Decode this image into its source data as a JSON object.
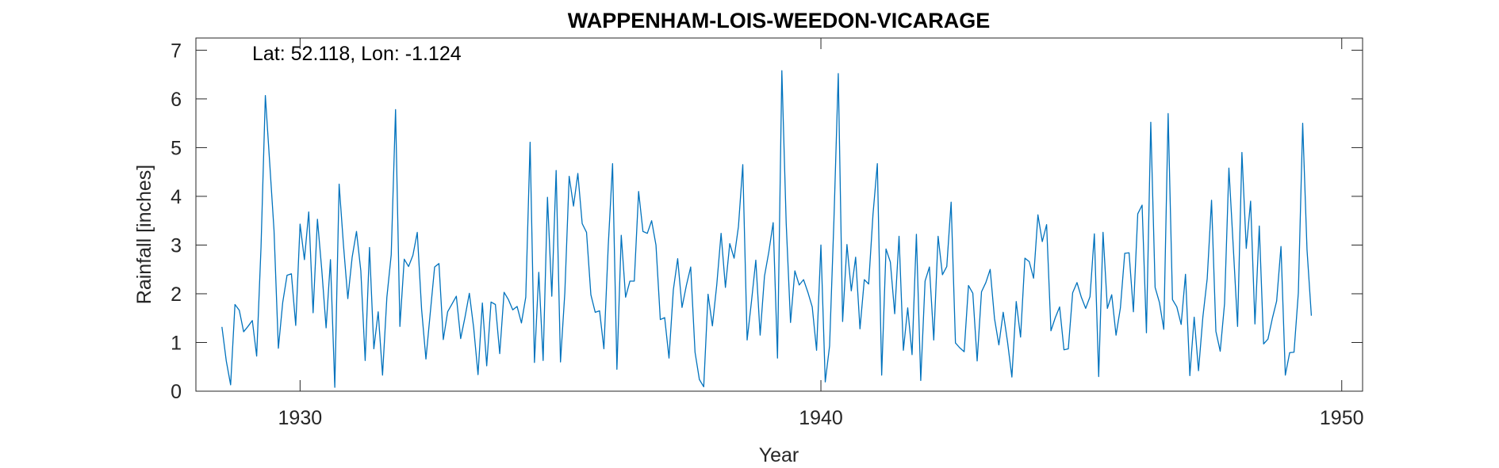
{
  "chart_data": {
    "type": "line",
    "title": "WAPPENHAM-LOIS-WEEDON-VICARAGE",
    "xlabel": "Year",
    "ylabel": "Rainfall [inches]",
    "annotation": "Lat: 52.118, Lon: -1.124",
    "xlim": [
      1928,
      1950.4
    ],
    "ylim": [
      0,
      7.25
    ],
    "xticks": [
      1930,
      1940,
      1950
    ],
    "yticks": [
      0,
      1,
      2,
      3,
      4,
      5,
      6,
      7
    ],
    "grid": false,
    "box": true,
    "series": [
      {
        "color": "#0072BD",
        "start_year": 1928.5,
        "step": 0.0833333,
        "values": [
          1.32,
          0.62,
          0.13,
          1.78,
          1.66,
          1.22,
          1.33,
          1.45,
          0.72,
          2.95,
          6.07,
          4.69,
          3.3,
          0.88,
          1.82,
          2.38,
          2.41,
          1.35,
          3.43,
          2.7,
          3.68,
          1.61,
          3.53,
          2.49,
          1.3,
          2.7,
          0.08,
          4.25,
          3.0,
          1.9,
          2.75,
          3.28,
          2.47,
          0.63,
          2.95,
          0.87,
          1.63,
          0.33,
          1.93,
          2.8,
          5.78,
          1.33,
          2.71,
          2.56,
          2.79,
          3.26,
          1.68,
          0.66,
          1.61,
          2.55,
          2.62,
          1.06,
          1.63,
          1.79,
          1.95,
          1.08,
          1.52,
          2.01,
          1.3,
          0.34,
          1.81,
          0.52,
          1.83,
          1.78,
          0.77,
          2.03,
          1.88,
          1.67,
          1.74,
          1.4,
          1.93,
          5.11,
          0.59,
          2.44,
          0.63,
          3.98,
          1.95,
          4.53,
          0.6,
          2.02,
          4.41,
          3.8,
          4.47,
          3.44,
          3.26,
          1.98,
          1.62,
          1.65,
          0.87,
          2.98,
          4.67,
          0.45,
          3.2,
          1.93,
          2.26,
          2.26,
          4.1,
          3.28,
          3.24,
          3.5,
          3.0,
          1.47,
          1.51,
          0.68,
          2.08,
          2.72,
          1.72,
          2.17,
          2.55,
          0.8,
          0.24,
          0.09,
          1.99,
          1.34,
          2.18,
          3.24,
          2.13,
          3.03,
          2.73,
          3.38,
          4.65,
          1.05,
          1.84,
          2.69,
          1.15,
          2.36,
          2.86,
          3.46,
          0.68,
          6.58,
          3.45,
          1.41,
          2.47,
          2.18,
          2.29,
          2.03,
          1.73,
          0.84,
          3.0,
          0.19,
          0.93,
          3.51,
          6.52,
          1.43,
          3.01,
          2.06,
          2.75,
          1.28,
          2.29,
          2.2,
          3.63,
          4.67,
          0.33,
          2.92,
          2.65,
          1.59,
          3.18,
          0.84,
          1.71,
          0.75,
          3.22,
          0.22,
          2.26,
          2.55,
          1.05,
          3.18,
          2.39,
          2.56,
          3.88,
          0.99,
          0.89,
          0.81,
          2.17,
          2.01,
          0.62,
          2.04,
          2.23,
          2.5,
          1.49,
          0.95,
          1.62,
          1.01,
          0.29,
          1.84,
          1.11,
          2.73,
          2.66,
          2.32,
          3.62,
          3.07,
          3.42,
          1.24,
          1.51,
          1.73,
          0.85,
          0.87,
          2.02,
          2.23,
          1.93,
          1.7,
          1.94,
          3.23,
          0.3,
          3.26,
          1.7,
          1.98,
          1.15,
          1.71,
          2.83,
          2.84,
          1.63,
          3.64,
          3.82,
          1.2,
          5.52,
          2.13,
          1.82,
          1.27,
          5.7,
          1.88,
          1.73,
          1.37,
          2.4,
          0.32,
          1.52,
          0.42,
          1.52,
          2.31,
          3.92,
          1.23,
          0.82,
          1.8,
          4.58,
          2.97,
          1.33,
          4.9,
          2.93,
          3.9,
          1.38,
          3.39,
          0.97,
          1.07,
          1.49,
          1.85,
          2.97,
          0.33,
          0.79,
          0.8,
          2.02,
          5.5,
          2.9,
          1.55
        ]
      }
    ]
  }
}
